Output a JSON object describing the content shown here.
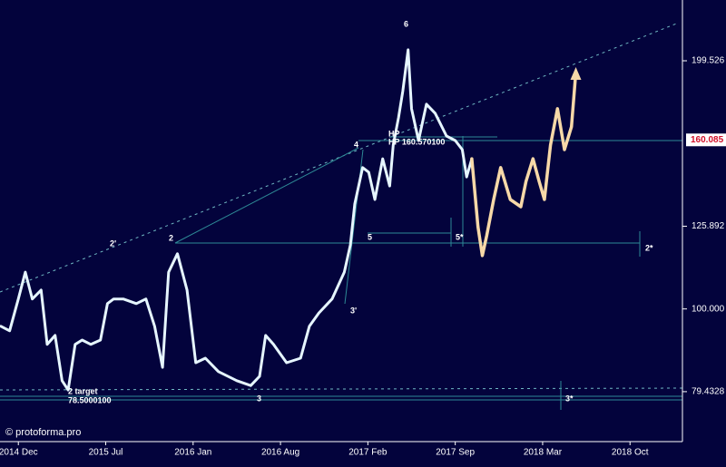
{
  "chart_data": {
    "type": "line",
    "log": true,
    "xlim": [
      -0.21,
      7.6
    ],
    "xticks": [
      {
        "value": 0,
        "label": "2014 Dec"
      },
      {
        "value": 1,
        "label": "2015 Jul"
      },
      {
        "value": 2,
        "label": "2016 Jan"
      },
      {
        "value": 3,
        "label": "2016 Aug"
      },
      {
        "value": 4,
        "label": "2017 Feb"
      },
      {
        "value": 5,
        "label": "2017 Sep"
      },
      {
        "value": 6,
        "label": "2018 Mar"
      },
      {
        "value": 7,
        "label": "2018 Oct"
      }
    ],
    "ylim": [
      68.6,
      236.3
    ],
    "yticks": [
      199.526,
      125.892,
      {
        "value": 100,
        "label": "100.000"
      },
      79.4328
    ],
    "last_price": 160.085,
    "series": [
      {
        "name": "price",
        "color": "#e6f6ff",
        "x": [
          -0.2,
          -0.1,
          0,
          0.08,
          0.16,
          0.26,
          0.33,
          0.42,
          0.5,
          0.57,
          0.65,
          0.73,
          0.83,
          0.94,
          1.02,
          1.09,
          1.2,
          1.35,
          1.46,
          1.56,
          1.65,
          1.72,
          1.82,
          1.93,
          2.03,
          2.14,
          2.29,
          2.5,
          2.66,
          2.76,
          2.83,
          2.92,
          3.07,
          3.23,
          3.33,
          3.44,
          3.59,
          3.73,
          3.8,
          3.85,
          3.94,
          4.01,
          4.08,
          4.17,
          4.25,
          4.29,
          4.35,
          4.4,
          4.46,
          4.5,
          4.58,
          4.67,
          4.77,
          4.9,
          5.0,
          5.08,
          5.13,
          5.19
        ],
        "values": [
          95.3,
          94.1,
          102.8,
          110.8,
          102.8,
          105.4,
          90.6,
          92.9,
          81.9,
          79.8,
          90.6,
          91.7,
          90.6,
          91.7,
          101.5,
          102.8,
          102.8,
          101.5,
          102.8,
          95.3,
          85.0,
          110.8,
          116.6,
          105.4,
          86.1,
          87.2,
          84.0,
          81.9,
          80.8,
          82.9,
          92.9,
          90.6,
          86.1,
          87.2,
          95.3,
          98.9,
          102.8,
          110.8,
          119.5,
          133.9,
          148.2,
          146.3,
          135.6,
          151.9,
          140.8,
          157.8,
          170.2,
          183.5,
          205.7,
          174.6,
          159.8,
          176.8,
          172.4,
          161.8,
          159.8,
          155.8,
          144.4,
          151.9
        ]
      },
      {
        "name": "forecast",
        "color": "#f7d9a8",
        "x": [
          5.19,
          5.26,
          5.31,
          5.36,
          5.44,
          5.52,
          5.63,
          5.75,
          5.81,
          5.89,
          5.96,
          6.02,
          6.09,
          6.17,
          6.25,
          6.33,
          6.38
        ],
        "values": [
          151.9,
          125.7,
          116.0,
          122.6,
          135.6,
          148.2,
          135.6,
          132.9,
          142.6,
          151.9,
          142.6,
          135.6,
          157.8,
          174.6,
          155.8,
          166.0,
          193.1
        ]
      }
    ],
    "annotations": [
      "6",
      "4",
      "2'",
      "2",
      "5",
      "5*",
      "3'",
      "3",
      "2*",
      "3*",
      "2 target",
      "78.5000100",
      "HP",
      "HP 160.570100"
    ],
    "watermark": "© protoforma.pro"
  }
}
